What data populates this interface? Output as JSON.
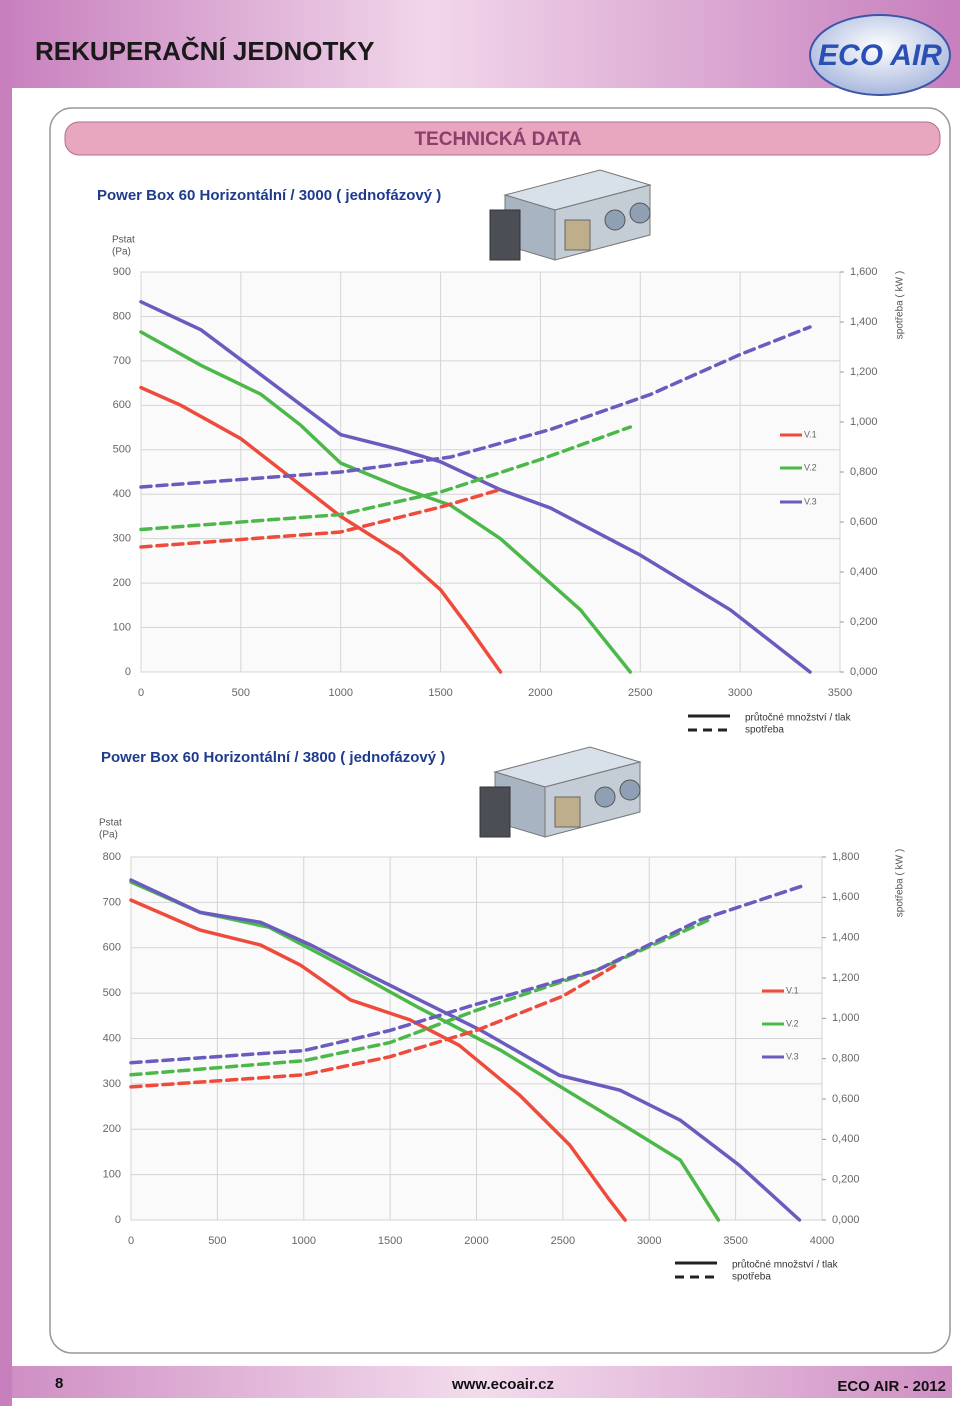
{
  "header": {
    "title": "REKUPERAČNÍ JEDNOTKY",
    "logo": "ECO AIR"
  },
  "section": {
    "title": "TECHNICKÁ DATA"
  },
  "chart_data": [
    {
      "type": "line",
      "title": "Power Box 60 Horizontální / 3000  ( jednofázový )",
      "ylabel": [
        "Pstat",
        "(Pa)"
      ],
      "y2label": "spotřeba ( kW )",
      "xlim": [
        0,
        3500
      ],
      "xticks": [
        0,
        500,
        1000,
        1500,
        2000,
        2500,
        3000,
        3500
      ],
      "ylim": [
        0,
        900
      ],
      "yticks": [
        0,
        100,
        200,
        300,
        400,
        500,
        600,
        700,
        800,
        900
      ],
      "y2lim": [
        0,
        1.6
      ],
      "y2ticks": [
        {
          "value": 0,
          "label": "0,000"
        },
        {
          "value": 0.2,
          "label": "0,200"
        },
        {
          "value": 0.4,
          "label": "0,400"
        },
        {
          "value": 0.6,
          "label": "0,600"
        },
        {
          "value": 0.8,
          "label": "0,800"
        },
        {
          "value": 1.0,
          "label": "1,000"
        },
        {
          "value": 1.2,
          "label": "1,200"
        },
        {
          "value": 1.4,
          "label": "1,400"
        },
        {
          "value": 1.6,
          "label": "1,600"
        }
      ],
      "grid": true,
      "series": [
        {
          "name": "V.1",
          "color": "#ee4b3c",
          "x": [
            0,
            200,
            500,
            700,
            1000,
            1300,
            1500,
            1650,
            1800
          ],
          "values": [
            640,
            600,
            525,
            455,
            350,
            265,
            185,
            95,
            0
          ]
        },
        {
          "name": "V.2",
          "color": "#4cb84a",
          "x": [
            0,
            300,
            600,
            800,
            1000,
            1300,
            1550,
            1800,
            2200,
            2450
          ],
          "values": [
            765,
            690,
            625,
            555,
            470,
            415,
            375,
            300,
            140,
            0
          ]
        },
        {
          "name": "V.3",
          "color": "#6a5bbf",
          "x": [
            0,
            300,
            600,
            1000,
            1300,
            1500,
            1800,
            2050,
            2500,
            2950,
            3350
          ],
          "values": [
            833,
            770,
            669,
            534,
            500,
            473,
            410,
            369,
            263,
            140,
            0
          ]
        },
        {
          "color": "#ee4b3c",
          "axis": "y2",
          "style": "dashed",
          "x": [
            0,
            1000,
            1500,
            1800
          ],
          "values": [
            0.5,
            0.56,
            0.66,
            0.73
          ]
        },
        {
          "color": "#4cb84a",
          "axis": "y2",
          "style": "dashed",
          "x": [
            0,
            1000,
            1500,
            2000,
            2450
          ],
          "values": [
            0.57,
            0.63,
            0.72,
            0.85,
            0.98
          ]
        },
        {
          "color": "#6a5bbf",
          "axis": "y2",
          "style": "dashed",
          "x": [
            0,
            1000,
            1550,
            2050,
            2550,
            3000,
            3350
          ],
          "values": [
            0.74,
            0.8,
            0.86,
            0.97,
            1.11,
            1.27,
            1.38
          ]
        }
      ],
      "line_legend": {
        "solid": "průtočné množství / tlak",
        "dashed": "spotřeba"
      }
    },
    {
      "type": "line",
      "title": "Power Box 60 Horizontální / 3800  ( jednofázový )",
      "ylabel": [
        "Pstat",
        "(Pa)"
      ],
      "y2label": "spotřeba ( kW )",
      "xlim": [
        0,
        4000
      ],
      "xticks": [
        0,
        500,
        1000,
        1500,
        2000,
        2500,
        3000,
        3500,
        4000
      ],
      "ylim": [
        0,
        800
      ],
      "yticks": [
        0,
        100,
        200,
        300,
        400,
        500,
        600,
        700,
        800
      ],
      "y2lim": [
        0,
        1.8
      ],
      "y2ticks": [
        {
          "value": 0,
          "label": "0,000"
        },
        {
          "value": 0.2,
          "label": "0,200"
        },
        {
          "value": 0.4,
          "label": "0,400"
        },
        {
          "value": 0.6,
          "label": "0,600"
        },
        {
          "value": 0.8,
          "label": "0,800"
        },
        {
          "value": 1.0,
          "label": "1,000"
        },
        {
          "value": 1.2,
          "label": "1,200"
        },
        {
          "value": 1.4,
          "label": "1,400"
        },
        {
          "value": 1.6,
          "label": "1,600"
        },
        {
          "value": 1.8,
          "label": "1,800"
        }
      ],
      "grid": true,
      "series": [
        {
          "name": "V.1",
          "color": "#ee4b3c",
          "x": [
            0,
            400,
            750,
            980,
            1270,
            1615,
            1900,
            2250,
            2540,
            2770,
            2860
          ],
          "values": [
            705,
            639,
            606,
            562,
            485,
            441,
            385,
            275,
            165,
            44,
            0
          ]
        },
        {
          "name": "V.2",
          "color": "#4cb84a",
          "x": [
            0,
            400,
            800,
            1270,
            1670,
            2140,
            2710,
            3180,
            3400
          ],
          "values": [
            745,
            678,
            645,
            551,
            467,
            374,
            242,
            132,
            0
          ]
        },
        {
          "name": "V.3",
          "color": "#6a5bbf",
          "x": [
            0,
            400,
            750,
            1040,
            1320,
            1670,
            2020,
            2480,
            2830,
            3180,
            3520,
            3870
          ],
          "values": [
            749,
            678,
            656,
            606,
            551,
            485,
            419,
            319,
            286,
            220,
            121,
            0
          ]
        },
        {
          "color": "#ee4b3c",
          "axis": "y2",
          "style": "dashed",
          "x": [
            0,
            1000,
            1500,
            2000,
            2500,
            2800
          ],
          "values": [
            0.66,
            0.72,
            0.81,
            0.94,
            1.11,
            1.26
          ]
        },
        {
          "color": "#4cb84a",
          "axis": "y2",
          "style": "dashed",
          "x": [
            0,
            1000,
            1500,
            2000,
            2700,
            3350
          ],
          "values": [
            0.72,
            0.79,
            0.88,
            1.04,
            1.24,
            1.49
          ]
        },
        {
          "color": "#6a5bbf",
          "axis": "y2",
          "style": "dashed",
          "x": [
            0,
            1000,
            1500,
            2000,
            2700,
            3300,
            3900
          ],
          "values": [
            0.78,
            0.84,
            0.94,
            1.07,
            1.24,
            1.49,
            1.66
          ]
        }
      ],
      "line_legend": {
        "solid": "průtočné množství / tlak",
        "dashed": "spotřeba"
      }
    }
  ],
  "footer": {
    "page": "8",
    "url": "www.ecoair.cz",
    "brand": "ECO AIR - 2012"
  }
}
